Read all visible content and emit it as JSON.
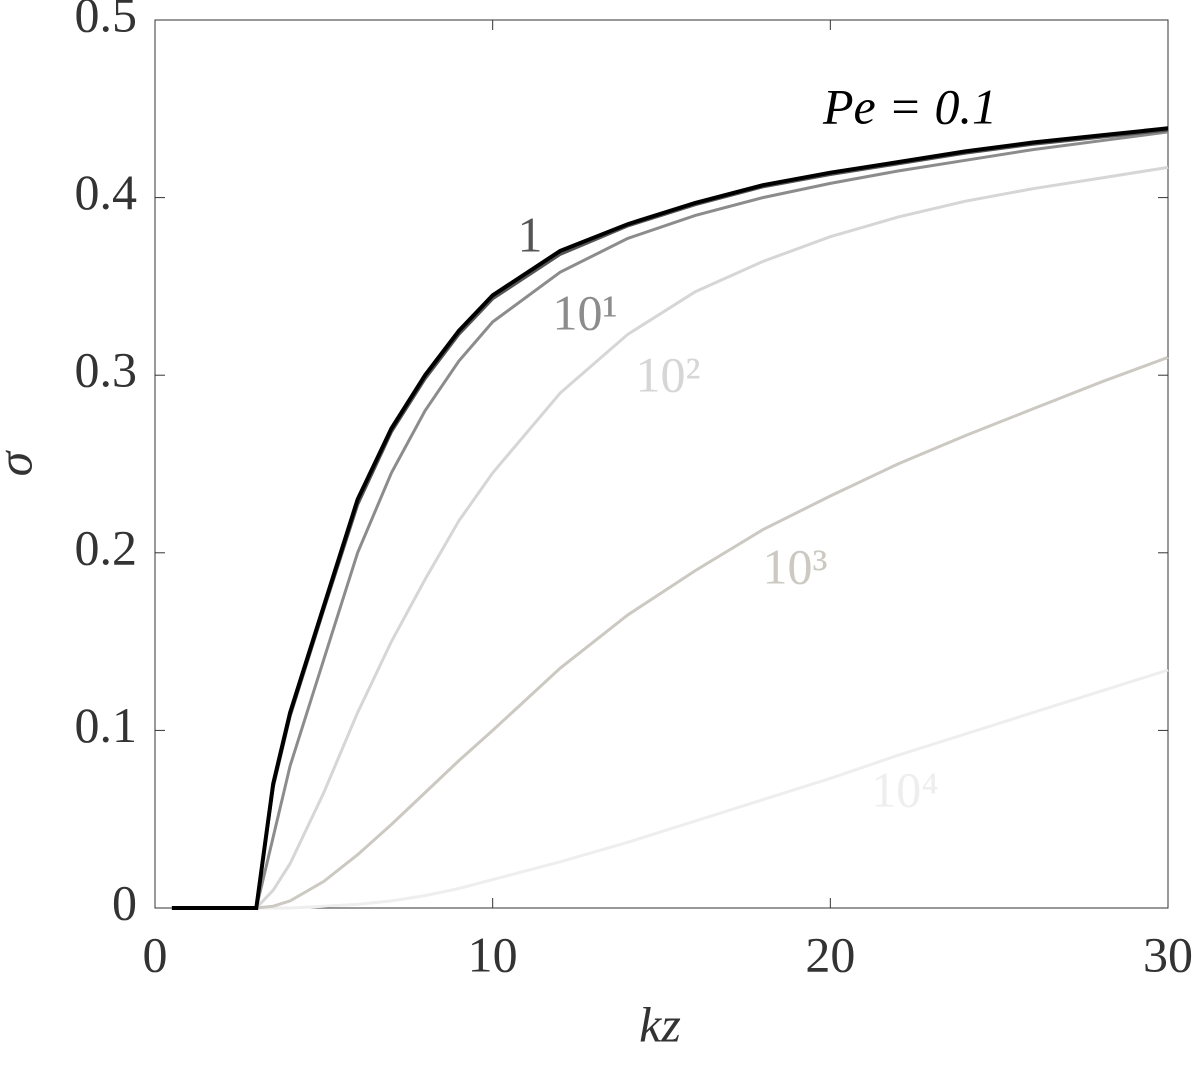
{
  "chart_data": {
    "type": "line",
    "x_label": "kz",
    "y_label": "σ",
    "x": [
      0.5,
      1,
      2,
      3,
      3.5,
      4,
      5,
      6,
      7,
      8,
      9,
      10,
      12,
      14,
      16,
      18,
      20,
      22,
      24,
      26,
      28,
      30
    ],
    "series": [
      {
        "name": "Pe = 0.1",
        "color": "#000000",
        "values": [
          0,
          0,
          0,
          0,
          0.07,
          0.11,
          0.17,
          0.23,
          0.27,
          0.3,
          0.325,
          0.345,
          0.37,
          0.385,
          0.397,
          0.407,
          0.414,
          0.42,
          0.426,
          0.431,
          0.435,
          0.439
        ]
      },
      {
        "name": "1",
        "color": "#555555",
        "values": [
          0,
          0,
          0,
          0,
          0.068,
          0.108,
          0.168,
          0.227,
          0.268,
          0.298,
          0.323,
          0.343,
          0.368,
          0.384,
          0.396,
          0.406,
          0.413,
          0.419,
          0.425,
          0.43,
          0.434,
          0.438
        ]
      },
      {
        "name": "10¹",
        "color": "#8c8c8c",
        "values": [
          0,
          0,
          0,
          0,
          0.04,
          0.08,
          0.14,
          0.2,
          0.245,
          0.28,
          0.308,
          0.33,
          0.358,
          0.377,
          0.39,
          0.4,
          0.408,
          0.415,
          0.421,
          0.427,
          0.432,
          0.437
        ]
      },
      {
        "name": "10²",
        "color": "#d6d6d6",
        "values": [
          0,
          0,
          0,
          0,
          0.01,
          0.025,
          0.065,
          0.11,
          0.15,
          0.185,
          0.218,
          0.245,
          0.29,
          0.323,
          0.347,
          0.364,
          0.378,
          0.389,
          0.398,
          0.405,
          0.411,
          0.417
        ]
      },
      {
        "name": "10³",
        "color": "#ccc9c2",
        "values": [
          0,
          0,
          0,
          0,
          0.001,
          0.004,
          0.015,
          0.03,
          0.047,
          0.065,
          0.083,
          0.1,
          0.135,
          0.165,
          0.19,
          0.213,
          0.232,
          0.25,
          0.266,
          0.281,
          0.296,
          0.31
        ]
      },
      {
        "name": "10⁴",
        "color": "#eeeeee",
        "values": [
          0,
          0,
          0,
          0,
          0,
          0,
          0.001,
          0.002,
          0.004,
          0.007,
          0.011,
          0.016,
          0.026,
          0.037,
          0.049,
          0.061,
          0.073,
          0.086,
          0.098,
          0.11,
          0.122,
          0.134
        ]
      }
    ],
    "xlim": [
      0,
      30
    ],
    "xticks": [
      0,
      10,
      20,
      30
    ],
    "ylim": [
      0,
      0.5
    ],
    "yticks": [
      0,
      0.1,
      0.2,
      0.3,
      0.4,
      0.5
    ],
    "grid": false
  }
}
